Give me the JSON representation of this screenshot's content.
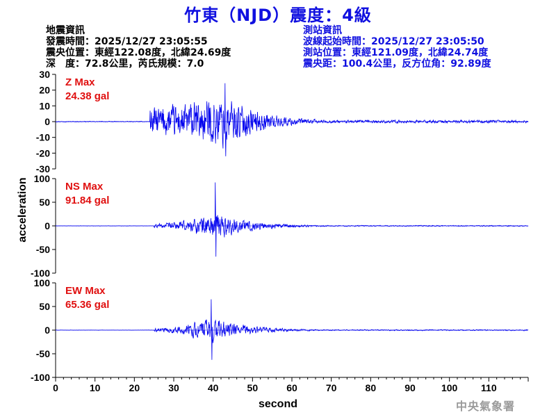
{
  "header": {
    "title": "竹東（NJD）震度：4級"
  },
  "earthquake_info": {
    "heading": "地震資訊",
    "origin_time": "發震時間：2025/12/27 23:05:55",
    "epicenter": "震央位置：東經122.08度，北緯24.69度",
    "depth_magnitude": "深　度：72.8公里，芮氏規模：7.0"
  },
  "station_info": {
    "heading": "測站資訊",
    "arrival_time": "波線起始時間：2025/12/27 23:05:50",
    "location": "測站位置：東經121.09度，北緯24.74度",
    "distance": "震央距：100.4公里，反方位角：92.89度"
  },
  "watermark": "中央氣象署",
  "colors": {
    "title": "#1010e0",
    "station_info": "#1010e0",
    "trace": "#0000ee",
    "max_label": "#e01010",
    "watermark": "#9a9a9a"
  },
  "chart_data": {
    "type": "line",
    "xlabel": "second",
    "ylabel": "acceleration",
    "xlim": [
      0,
      120
    ],
    "xticks": [
      0,
      10,
      20,
      30,
      40,
      50,
      60,
      70,
      80,
      90,
      100,
      110
    ],
    "series": [
      {
        "name": "Z",
        "max_label": "Z Max",
        "max_value": "24.38 gal",
        "ylim": [
          -30,
          30
        ],
        "yticks": [
          -30,
          -20,
          -10,
          0,
          10,
          20,
          30
        ],
        "onset": 24,
        "peak_time": 43,
        "peak": 24.38,
        "trough": -22,
        "env_a": 12,
        "env_b": 22,
        "tail": 1.2,
        "pre_noise": 0.3
      },
      {
        "name": "NS",
        "max_label": "NS Max",
        "max_value": "91.84 gal",
        "ylim": [
          -100,
          100
        ],
        "yticks": [
          -100,
          -50,
          0,
          50,
          100
        ],
        "onset": 25,
        "peak_time": 40.5,
        "peak": 91.84,
        "trough": -65,
        "env_a": 6,
        "env_b": 38,
        "tail": 1.5,
        "pre_noise": 0.4
      },
      {
        "name": "EW",
        "max_label": "EW Max",
        "max_value": "65.36 gal",
        "ylim": [
          -100,
          100
        ],
        "yticks": [
          -100,
          -50,
          0,
          50,
          100
        ],
        "onset": 25,
        "peak_time": 39.5,
        "peak": 65.36,
        "trough": -63,
        "env_a": 5,
        "env_b": 35,
        "tail": 1.5,
        "pre_noise": 0.4
      }
    ]
  }
}
